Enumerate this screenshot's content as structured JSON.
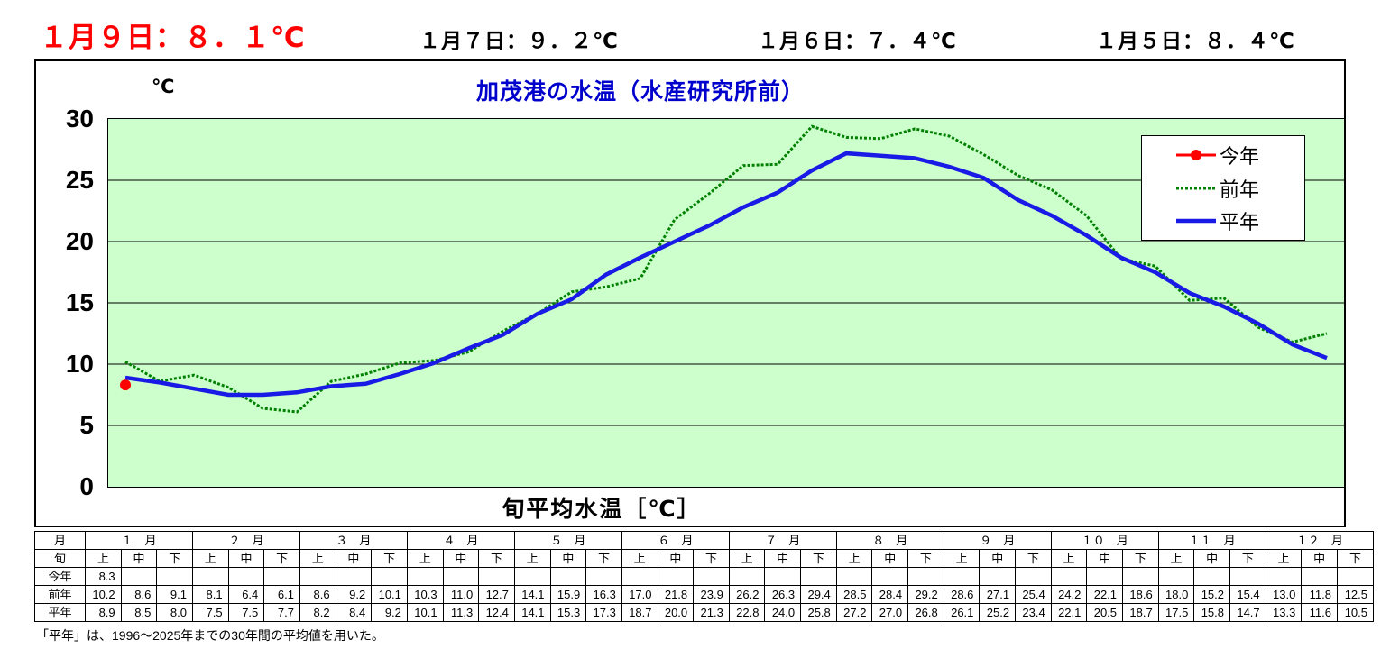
{
  "header": {
    "latest": "１月９日：８．１℃",
    "recent": [
      "１月７日：９．２℃",
      "１月６日：７．４℃",
      "１月５日：８．４℃"
    ]
  },
  "footnote": "「平年」は、1996～2025年までの30年間の平均値を用いた。",
  "colors": {
    "latest_text": "#ff0000",
    "plot_background": "#ccffcc",
    "title_text": "#0000cc",
    "gridline": "#000000"
  },
  "table": {
    "month_header_label": "月",
    "period_header_label": "旬",
    "months": [
      "１　月",
      "２　月",
      "３　月",
      "４　月",
      "５　月",
      "６　月",
      "７　月",
      "８　月",
      "９　月",
      "１０　月",
      "１１　月",
      "１２　月"
    ],
    "periods": [
      "上",
      "中",
      "下"
    ]
  },
  "chart_data": {
    "type": "line",
    "title": "加茂港の水温（水産研究所前）",
    "xlabel": "旬平均水温［℃］",
    "ylabel": "℃",
    "ylim": [
      0,
      30
    ],
    "yticks": [
      0,
      5,
      10,
      15,
      20,
      25,
      30
    ],
    "grid": "horizontal",
    "legend_position": "top-right",
    "categories": [
      "1月上",
      "1月中",
      "1月下",
      "2月上",
      "2月中",
      "2月下",
      "3月上",
      "3月中",
      "3月下",
      "4月上",
      "4月中",
      "4月下",
      "5月上",
      "5月中",
      "5月下",
      "6月上",
      "6月中",
      "6月下",
      "7月上",
      "7月中",
      "7月下",
      "8月上",
      "8月中",
      "8月下",
      "9月上",
      "9月中",
      "9月下",
      "10月上",
      "10月中",
      "10月下",
      "11月上",
      "11月中",
      "11月下",
      "12月上",
      "12月中",
      "12月下"
    ],
    "series": [
      {
        "key": "kotoshi",
        "name": "今年",
        "color": "#ff0000",
        "width": 3,
        "dash": "",
        "marker": true,
        "values": [
          8.3,
          null,
          null,
          null,
          null,
          null,
          null,
          null,
          null,
          null,
          null,
          null,
          null,
          null,
          null,
          null,
          null,
          null,
          null,
          null,
          null,
          null,
          null,
          null,
          null,
          null,
          null,
          null,
          null,
          null,
          null,
          null,
          null,
          null,
          null,
          null
        ]
      },
      {
        "key": "zennen",
        "name": "前年",
        "color": "#008000",
        "width": 3,
        "dash": "3 2",
        "marker": false,
        "values": [
          10.2,
          8.6,
          9.1,
          8.1,
          6.4,
          6.1,
          8.6,
          9.2,
          10.1,
          10.3,
          11.0,
          12.7,
          14.1,
          15.9,
          16.3,
          17.0,
          21.8,
          23.9,
          26.2,
          26.3,
          29.4,
          28.5,
          28.4,
          29.2,
          28.6,
          27.1,
          25.4,
          24.2,
          22.1,
          18.6,
          18.0,
          15.2,
          15.4,
          13.0,
          11.8,
          12.5
        ]
      },
      {
        "key": "heinen",
        "name": "平年",
        "color": "#1a1ae6",
        "width": 4.5,
        "dash": "",
        "marker": false,
        "values": [
          8.9,
          8.5,
          8.0,
          7.5,
          7.5,
          7.7,
          8.2,
          8.4,
          9.2,
          10.1,
          11.3,
          12.4,
          14.1,
          15.3,
          17.3,
          18.7,
          20.0,
          21.3,
          22.8,
          24.0,
          25.8,
          27.2,
          27.0,
          26.8,
          26.1,
          25.2,
          23.4,
          22.1,
          20.5,
          18.7,
          17.5,
          15.8,
          14.7,
          13.3,
          11.6,
          10.5
        ]
      }
    ]
  }
}
